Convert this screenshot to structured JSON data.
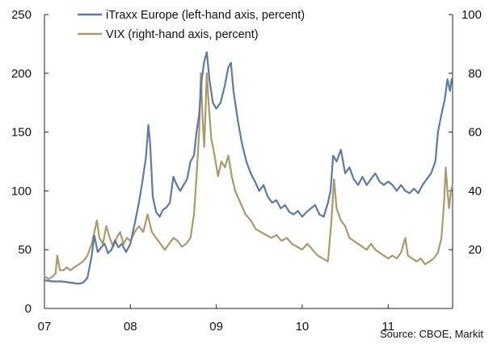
{
  "chart_data": {
    "type": "line",
    "source": "Source: CBOE, Markit",
    "x_ticks": [
      "07",
      "08",
      "09",
      "10",
      "11"
    ],
    "x_range": [
      2007.0,
      2011.75
    ],
    "left_axis": {
      "range": [
        0,
        250
      ],
      "ticks": [
        "0",
        "50",
        "100",
        "150",
        "200",
        "250"
      ]
    },
    "right_axis": {
      "range": [
        0,
        100
      ],
      "ticks": [
        "20",
        "40",
        "60",
        "80",
        "100"
      ]
    },
    "legend_position": "top-left",
    "series": [
      {
        "name": "iTraxx Europe (left-hand axis, percent)",
        "axis": "left",
        "color": "#5b7aa8",
        "points": [
          [
            2007.0,
            24
          ],
          [
            2007.1,
            23
          ],
          [
            2007.2,
            23
          ],
          [
            2007.3,
            22
          ],
          [
            2007.4,
            21
          ],
          [
            2007.45,
            22
          ],
          [
            2007.5,
            26
          ],
          [
            2007.55,
            45
          ],
          [
            2007.58,
            62
          ],
          [
            2007.62,
            48
          ],
          [
            2007.66,
            52
          ],
          [
            2007.7,
            55
          ],
          [
            2007.74,
            47
          ],
          [
            2007.78,
            50
          ],
          [
            2007.82,
            58
          ],
          [
            2007.86,
            52
          ],
          [
            2007.9,
            55
          ],
          [
            2007.95,
            48
          ],
          [
            2008.0,
            55
          ],
          [
            2008.05,
            72
          ],
          [
            2008.1,
            90
          ],
          [
            2008.14,
            108
          ],
          [
            2008.18,
            128
          ],
          [
            2008.21,
            156
          ],
          [
            2008.23,
            140
          ],
          [
            2008.26,
            95
          ],
          [
            2008.3,
            82
          ],
          [
            2008.34,
            78
          ],
          [
            2008.38,
            84
          ],
          [
            2008.42,
            86
          ],
          [
            2008.46,
            90
          ],
          [
            2008.5,
            112
          ],
          [
            2008.54,
            105
          ],
          [
            2008.58,
            100
          ],
          [
            2008.62,
            105
          ],
          [
            2008.66,
            110
          ],
          [
            2008.7,
            125
          ],
          [
            2008.74,
            130
          ],
          [
            2008.77,
            150
          ],
          [
            2008.8,
            165
          ],
          [
            2008.83,
            195
          ],
          [
            2008.86,
            210
          ],
          [
            2008.89,
            218
          ],
          [
            2008.92,
            195
          ],
          [
            2008.96,
            175
          ],
          [
            2009.0,
            170
          ],
          [
            2009.05,
            175
          ],
          [
            2009.1,
            190
          ],
          [
            2009.14,
            205
          ],
          [
            2009.17,
            209
          ],
          [
            2009.2,
            185
          ],
          [
            2009.25,
            160
          ],
          [
            2009.3,
            140
          ],
          [
            2009.35,
            125
          ],
          [
            2009.4,
            115
          ],
          [
            2009.45,
            108
          ],
          [
            2009.5,
            100
          ],
          [
            2009.55,
            105
          ],
          [
            2009.6,
            95
          ],
          [
            2009.65,
            90
          ],
          [
            2009.7,
            92
          ],
          [
            2009.75,
            85
          ],
          [
            2009.8,
            88
          ],
          [
            2009.85,
            82
          ],
          [
            2009.9,
            80
          ],
          [
            2009.95,
            83
          ],
          [
            2010.0,
            78
          ],
          [
            2010.05,
            82
          ],
          [
            2010.1,
            85
          ],
          [
            2010.15,
            88
          ],
          [
            2010.2,
            80
          ],
          [
            2010.25,
            78
          ],
          [
            2010.3,
            90
          ],
          [
            2010.33,
            100
          ],
          [
            2010.36,
            130
          ],
          [
            2010.4,
            125
          ],
          [
            2010.45,
            135
          ],
          [
            2010.5,
            115
          ],
          [
            2010.55,
            120
          ],
          [
            2010.6,
            110
          ],
          [
            2010.65,
            105
          ],
          [
            2010.7,
            112
          ],
          [
            2010.75,
            105
          ],
          [
            2010.8,
            110
          ],
          [
            2010.85,
            115
          ],
          [
            2010.9,
            108
          ],
          [
            2010.95,
            105
          ],
          [
            2011.0,
            108
          ],
          [
            2011.05,
            105
          ],
          [
            2011.1,
            100
          ],
          [
            2011.15,
            105
          ],
          [
            2011.2,
            100
          ],
          [
            2011.25,
            98
          ],
          [
            2011.3,
            102
          ],
          [
            2011.35,
            98
          ],
          [
            2011.4,
            105
          ],
          [
            2011.45,
            110
          ],
          [
            2011.5,
            115
          ],
          [
            2011.55,
            125
          ],
          [
            2011.58,
            150
          ],
          [
            2011.62,
            165
          ],
          [
            2011.66,
            178
          ],
          [
            2011.69,
            195
          ],
          [
            2011.72,
            185
          ],
          [
            2011.74,
            195
          ]
        ]
      },
      {
        "name": "VIX (right-hand axis, percent)",
        "axis": "right",
        "color": "#aa9a6a",
        "points": [
          [
            2007.0,
            11
          ],
          [
            2007.05,
            10
          ],
          [
            2007.1,
            11
          ],
          [
            2007.13,
            12
          ],
          [
            2007.15,
            18
          ],
          [
            2007.18,
            13
          ],
          [
            2007.22,
            13
          ],
          [
            2007.26,
            14
          ],
          [
            2007.3,
            13
          ],
          [
            2007.35,
            14
          ],
          [
            2007.4,
            15
          ],
          [
            2007.45,
            16
          ],
          [
            2007.5,
            18
          ],
          [
            2007.55,
            22
          ],
          [
            2007.58,
            26
          ],
          [
            2007.61,
            30
          ],
          [
            2007.64,
            24
          ],
          [
            2007.68,
            22
          ],
          [
            2007.72,
            28
          ],
          [
            2007.76,
            24
          ],
          [
            2007.8,
            21
          ],
          [
            2007.84,
            24
          ],
          [
            2007.88,
            26
          ],
          [
            2007.92,
            22
          ],
          [
            2007.96,
            24
          ],
          [
            2008.0,
            23
          ],
          [
            2008.05,
            26
          ],
          [
            2008.1,
            28
          ],
          [
            2008.15,
            26
          ],
          [
            2008.2,
            32
          ],
          [
            2008.25,
            26
          ],
          [
            2008.3,
            24
          ],
          [
            2008.35,
            22
          ],
          [
            2008.4,
            20
          ],
          [
            2008.45,
            22
          ],
          [
            2008.5,
            24
          ],
          [
            2008.55,
            23
          ],
          [
            2008.6,
            21
          ],
          [
            2008.65,
            22
          ],
          [
            2008.7,
            24
          ],
          [
            2008.74,
            32
          ],
          [
            2008.77,
            45
          ],
          [
            2008.8,
            60
          ],
          [
            2008.82,
            80
          ],
          [
            2008.84,
            65
          ],
          [
            2008.86,
            55
          ],
          [
            2008.89,
            80
          ],
          [
            2008.91,
            70
          ],
          [
            2008.94,
            58
          ],
          [
            2008.98,
            52
          ],
          [
            2009.02,
            45
          ],
          [
            2009.06,
            50
          ],
          [
            2009.1,
            48
          ],
          [
            2009.14,
            52
          ],
          [
            2009.18,
            45
          ],
          [
            2009.22,
            40
          ],
          [
            2009.28,
            36
          ],
          [
            2009.34,
            32
          ],
          [
            2009.4,
            30
          ],
          [
            2009.46,
            27
          ],
          [
            2009.52,
            26
          ],
          [
            2009.58,
            25
          ],
          [
            2009.64,
            24
          ],
          [
            2009.7,
            25
          ],
          [
            2009.76,
            23
          ],
          [
            2009.82,
            24
          ],
          [
            2009.88,
            22
          ],
          [
            2009.94,
            21
          ],
          [
            2010.0,
            20
          ],
          [
            2010.06,
            22
          ],
          [
            2010.12,
            20
          ],
          [
            2010.18,
            18
          ],
          [
            2010.24,
            17
          ],
          [
            2010.3,
            16
          ],
          [
            2010.34,
            30
          ],
          [
            2010.37,
            44
          ],
          [
            2010.4,
            34
          ],
          [
            2010.45,
            30
          ],
          [
            2010.5,
            28
          ],
          [
            2010.55,
            24
          ],
          [
            2010.6,
            23
          ],
          [
            2010.65,
            22
          ],
          [
            2010.7,
            21
          ],
          [
            2010.75,
            20
          ],
          [
            2010.8,
            22
          ],
          [
            2010.85,
            20
          ],
          [
            2010.9,
            19
          ],
          [
            2010.95,
            18
          ],
          [
            2011.0,
            17
          ],
          [
            2011.05,
            18
          ],
          [
            2011.1,
            17
          ],
          [
            2011.15,
            19
          ],
          [
            2011.2,
            24
          ],
          [
            2011.23,
            18
          ],
          [
            2011.28,
            17
          ],
          [
            2011.33,
            16
          ],
          [
            2011.38,
            17
          ],
          [
            2011.43,
            15
          ],
          [
            2011.48,
            16
          ],
          [
            2011.53,
            17
          ],
          [
            2011.58,
            19
          ],
          [
            2011.62,
            24
          ],
          [
            2011.65,
            36
          ],
          [
            2011.67,
            48
          ],
          [
            2011.69,
            40
          ],
          [
            2011.71,
            34
          ],
          [
            2011.73,
            40
          ],
          [
            2011.75,
            42
          ]
        ]
      }
    ]
  }
}
